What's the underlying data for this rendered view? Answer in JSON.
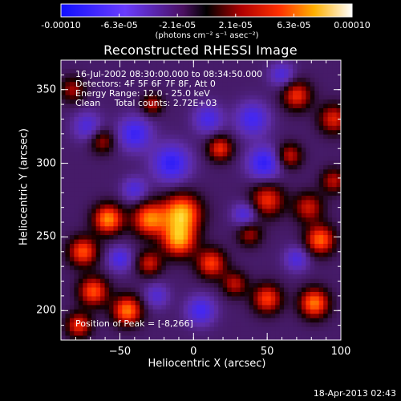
{
  "colorbar": {
    "ticks": [
      "-0.00010",
      "-6.3e-05",
      "-2.1e-05",
      "2.1e-05",
      "6.3e-05",
      "0.00010"
    ],
    "unit": "(photons cm⁻² s⁻¹ asec⁻²)",
    "min": -0.0001,
    "max": 0.0001
  },
  "chart_data": {
    "type": "heatmap",
    "title": "Reconstructed RHESSI Image",
    "xlabel": "Heliocentric X (arcsec)",
    "ylabel": "Heliocentric Y (arcsec)",
    "xlim": [
      -90,
      100
    ],
    "ylim": [
      180,
      370
    ],
    "xticks": [
      -50,
      0,
      50,
      100
    ],
    "yticks": [
      200,
      250,
      300,
      350
    ],
    "xtick_labels": [
      "−50",
      "0",
      "50",
      "100"
    ],
    "ytick_labels": [
      "200",
      "250",
      "300",
      "350"
    ],
    "peak": [
      -8,
      266
    ],
    "blobs": [
      {
        "x": -8,
        "y": 266,
        "v": 1.0,
        "s": 9
      },
      {
        "x": -10,
        "y": 248,
        "v": 0.9,
        "s": 8
      },
      {
        "x": -30,
        "y": 262,
        "v": 0.85,
        "s": 8
      },
      {
        "x": -58,
        "y": 262,
        "v": 0.9,
        "s": 7
      },
      {
        "x": -75,
        "y": 240,
        "v": 0.75,
        "s": 7
      },
      {
        "x": -68,
        "y": 213,
        "v": 0.75,
        "s": 7
      },
      {
        "x": -78,
        "y": 190,
        "v": 0.65,
        "s": 6
      },
      {
        "x": -45,
        "y": 200,
        "v": 0.85,
        "s": 7
      },
      {
        "x": -30,
        "y": 232,
        "v": 0.55,
        "s": 6
      },
      {
        "x": 12,
        "y": 232,
        "v": 0.7,
        "s": 7
      },
      {
        "x": 50,
        "y": 275,
        "v": 0.65,
        "s": 8
      },
      {
        "x": 78,
        "y": 270,
        "v": 0.55,
        "s": 7
      },
      {
        "x": 86,
        "y": 248,
        "v": 0.8,
        "s": 7
      },
      {
        "x": 50,
        "y": 208,
        "v": 0.7,
        "s": 7
      },
      {
        "x": 82,
        "y": 205,
        "v": 0.85,
        "s": 7
      },
      {
        "x": 28,
        "y": 218,
        "v": 0.5,
        "s": 6
      },
      {
        "x": 18,
        "y": 310,
        "v": 0.65,
        "s": 6
      },
      {
        "x": 65,
        "y": 305,
        "v": 0.55,
        "s": 6
      },
      {
        "x": 70,
        "y": 346,
        "v": 0.65,
        "s": 7
      },
      {
        "x": 95,
        "y": 330,
        "v": 0.6,
        "s": 7
      },
      {
        "x": 95,
        "y": 288,
        "v": 0.5,
        "s": 6
      },
      {
        "x": -62,
        "y": 315,
        "v": 0.45,
        "s": 6
      },
      {
        "x": -28,
        "y": 340,
        "v": 0.5,
        "s": 5
      },
      {
        "x": -82,
        "y": 350,
        "v": 0.45,
        "s": 6
      },
      {
        "x": 38,
        "y": 252,
        "v": 0.45,
        "s": 6
      },
      {
        "x": -15,
        "y": 300,
        "v": -0.6,
        "s": 9
      },
      {
        "x": -40,
        "y": 320,
        "v": -0.55,
        "s": 8
      },
      {
        "x": -72,
        "y": 325,
        "v": -0.4,
        "s": 7
      },
      {
        "x": 48,
        "y": 300,
        "v": -0.6,
        "s": 8
      },
      {
        "x": 40,
        "y": 330,
        "v": -0.5,
        "s": 8
      },
      {
        "x": 10,
        "y": 330,
        "v": -0.45,
        "s": 7
      },
      {
        "x": -40,
        "y": 282,
        "v": -0.4,
        "s": 6
      },
      {
        "x": 35,
        "y": 265,
        "v": -0.45,
        "s": 6
      },
      {
        "x": -50,
        "y": 235,
        "v": -0.45,
        "s": 6
      },
      {
        "x": 5,
        "y": 200,
        "v": -0.5,
        "s": 7
      },
      {
        "x": 70,
        "y": 235,
        "v": -0.4,
        "s": 6
      },
      {
        "x": 60,
        "y": 360,
        "v": -0.4,
        "s": 6
      },
      {
        "x": -25,
        "y": 210,
        "v": -0.35,
        "s": 6
      }
    ]
  },
  "annotations": {
    "time": "16-Jul-2002 08:30:00.000 to 08:34:50.000",
    "detectors": "Detectors: 4F 5F 6F 7F 8F, Att 0",
    "energy": "Energy Range: 12.0 - 25.0 keV",
    "method": "Clean     Total counts: 2.72E+03",
    "peak": "Position of Peak = [-8,266]"
  },
  "timestamp": "18-Apr-2013 02:43"
}
